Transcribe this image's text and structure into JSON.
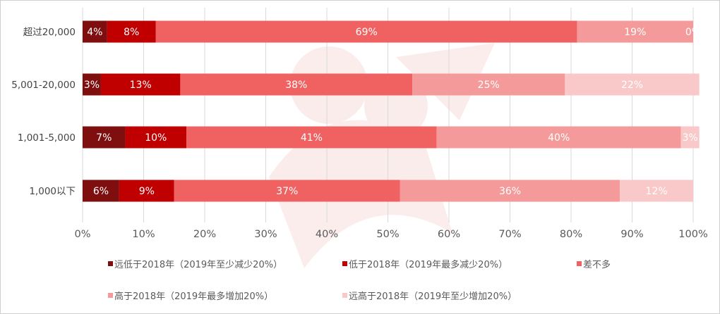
{
  "chart_data": {
    "type": "bar",
    "orientation": "horizontal",
    "stacked": "percent",
    "categories": [
      "超过20,000",
      "5,001-20,000",
      "1,001-5,000",
      "1,000以下"
    ],
    "series": [
      {
        "name": "远低于2018年（2019年至少减少20%）",
        "color": "#7f0f0f",
        "values": [
          4,
          3,
          7,
          6
        ]
      },
      {
        "name": "低于2018年（2019年最多减少20%）",
        "color": "#c00000",
        "values": [
          8,
          13,
          10,
          9
        ]
      },
      {
        "name": "差不多",
        "color": "#f06262",
        "values": [
          69,
          38,
          41,
          37
        ]
      },
      {
        "name": "高于2018年（2019年最多增加20%）",
        "color": "#f59a9a",
        "values": [
          19,
          25,
          40,
          36
        ]
      },
      {
        "name": "远高于2018年（2019年至少增加20%）",
        "color": "#f9c8c8",
        "values": [
          0,
          22,
          3,
          12
        ]
      }
    ],
    "xlim": [
      0,
      100
    ],
    "xticks": [
      "0%",
      "10%",
      "20%",
      "30%",
      "40%",
      "50%",
      "60%",
      "70%",
      "80%",
      "90%",
      "100%"
    ],
    "grid": "vertical",
    "legend_position": "bottom",
    "title": "",
    "xlabel": "",
    "ylabel": ""
  }
}
